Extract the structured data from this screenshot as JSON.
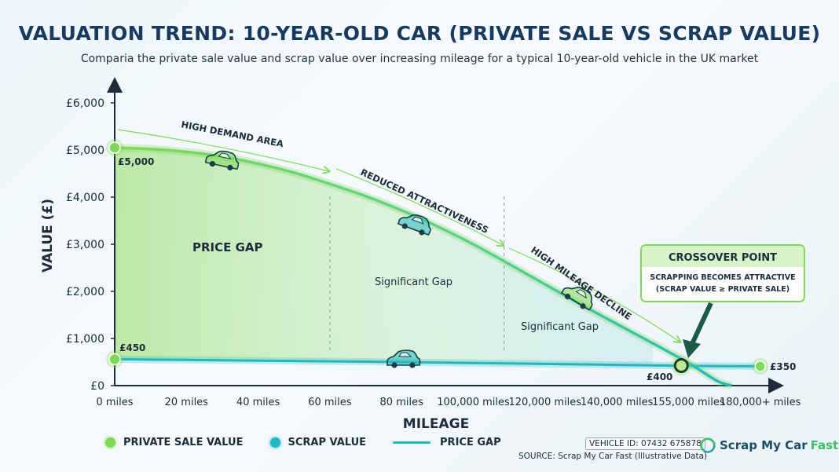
{
  "header": {
    "title": "VALUATION TREND: 10-YEAR-OLD CAR (PRIVATE SALE VS SCRAP VALUE)",
    "subtitle": "Comparia the private sale value and scrap value over increasing mileage for a typical 10-year-old vehicle in the UK market"
  },
  "chart_data": {
    "type": "line",
    "xlabel": "MILEAGE",
    "ylabel": "VALUE (£)",
    "ylim": [
      0,
      6000
    ],
    "categories": [
      "0 miles",
      "20 miles",
      "40 miles",
      "60 miles",
      "80 miles",
      "100,000 miles",
      "120,000 miles",
      "140,000 miles",
      "155,000 miles",
      "180,000+ miles"
    ],
    "yticks": [
      "£0",
      "£1,000",
      "£2,000",
      "£3,000",
      "£4,000",
      "£5,000",
      "£6,000"
    ],
    "grid": false,
    "series": [
      {
        "name": "PRIVATE SALE VALUE",
        "color": "#7ed957",
        "points": [
          [
            0,
            5050
          ],
          [
            0.5,
            5020
          ],
          [
            1,
            4960
          ],
          [
            1.5,
            4860
          ],
          [
            2,
            4710
          ],
          [
            2.5,
            4520
          ],
          [
            3,
            4280
          ],
          [
            3.5,
            4020
          ],
          [
            4,
            3720
          ],
          [
            4.5,
            3380
          ],
          [
            5,
            3000
          ],
          [
            5.5,
            2580
          ],
          [
            6,
            2150
          ],
          [
            6.5,
            1720
          ],
          [
            7,
            1310
          ],
          [
            7.5,
            900
          ],
          [
            8,
            480
          ],
          [
            8.4,
            100
          ],
          [
            8.6,
            0
          ]
        ]
      },
      {
        "name": "SCRAP VALUE",
        "color": "#22b8bf",
        "points": [
          [
            0,
            560
          ],
          [
            1,
            545
          ],
          [
            2,
            530
          ],
          [
            3,
            515
          ],
          [
            4,
            500
          ],
          [
            5,
            480
          ],
          [
            6,
            460
          ],
          [
            7,
            440
          ],
          [
            8,
            420
          ],
          [
            9,
            410
          ]
        ]
      }
    ],
    "point_labels": [
      {
        "text": "£5,000",
        "value": 5000
      },
      {
        "text": "£450",
        "value": 450
      },
      {
        "text": "£400",
        "value": 400
      },
      {
        "text": "£350",
        "value": 350
      }
    ],
    "annotations": {
      "zone_high_demand": "HIGH DEMAND AREA",
      "zone_reduced": "REDUCED ATTRACTIVENESS",
      "zone_high_mileage": "HIGH MILEAGE DECLINE",
      "price_gap": "PRICE GAP",
      "gap1": "Significant Gap",
      "gap2": "Significant Gap",
      "crossover_title": "CROSSOVER POINT",
      "crossover_line1": "SCRAPPING BECOMES ATTRACTIVE",
      "crossover_line2": "(SCRAP VALUE ≥ PRIVATE SALE)"
    },
    "colors": {
      "private": "#7ed957",
      "scrap": "#22b8bf",
      "axis": "#1d2b3a",
      "crossover_border": "#7ed957",
      "crossover_header": "#d8f3c7"
    }
  },
  "legend": {
    "private": "PRIVATE SALE VALUE",
    "scrap": "SCRAP VALUE",
    "gap": "PRICE GAP"
  },
  "footer": {
    "vehicle_id": "VEHICLE ID: 07432 675878",
    "source": "SOURCE: Scrap My Car Fast (Illustrative Data)",
    "brand_main": "Scrap My Car",
    "brand_accent": "Fast"
  },
  "icons": [
    "car-icon",
    "recycle-icon"
  ]
}
